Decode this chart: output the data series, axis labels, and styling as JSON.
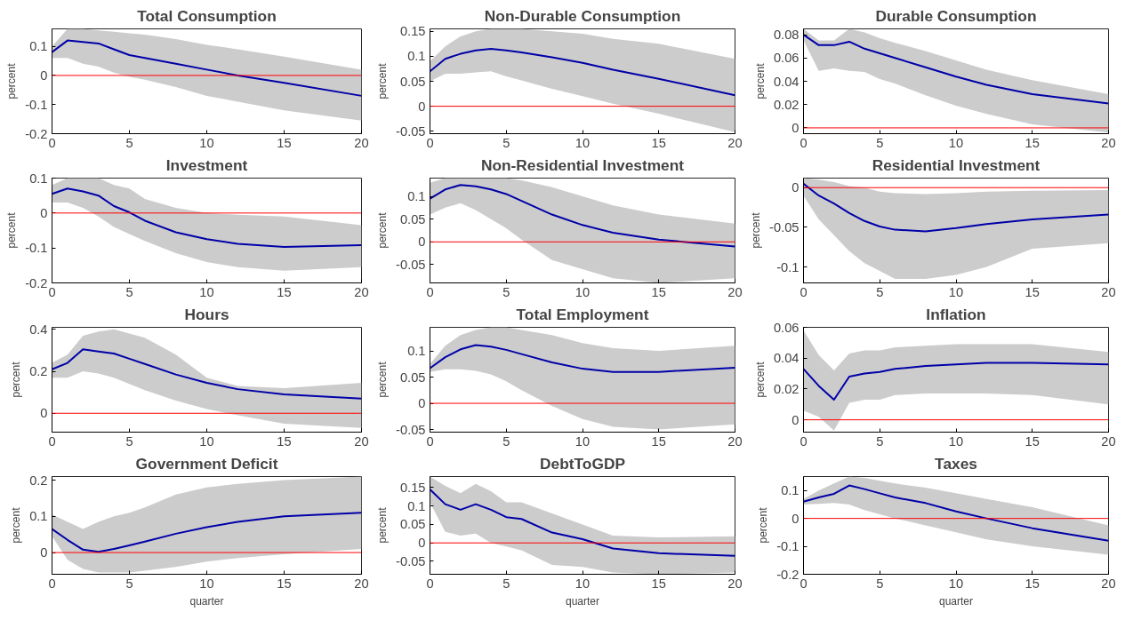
{
  "chart_data": [
    {
      "type": "line",
      "title": "Total Consumption",
      "ylabel": "percent",
      "x": [
        0,
        1,
        2,
        3,
        4,
        5,
        6,
        8,
        10,
        12,
        15,
        20
      ],
      "xlim": [
        0,
        20
      ],
      "xticks": [
        0,
        5,
        10,
        15,
        20
      ],
      "ylim": [
        -0.2,
        0.16
      ],
      "yticks": [
        -0.2,
        -0.1,
        0,
        0.1
      ],
      "grid": false,
      "ref_lines": [
        {
          "axis": "y",
          "value": 0,
          "color": "#ff0000"
        }
      ],
      "series": [
        {
          "color": "#0000a8",
          "values": [
            0.08,
            0.12,
            0.115,
            0.11,
            0.09,
            0.07,
            0.06,
            0.04,
            0.02,
            0,
            -0.025,
            -0.07
          ],
          "lower": [
            0.06,
            0.06,
            0.04,
            0.03,
            0.01,
            -0.005,
            -0.015,
            -0.04,
            -0.07,
            -0.09,
            -0.12,
            -0.155
          ],
          "upper": [
            0.1,
            0.16,
            0.16,
            0.155,
            0.15,
            0.145,
            0.14,
            0.125,
            0.105,
            0.09,
            0.065,
            0.02
          ]
        }
      ]
    },
    {
      "type": "line",
      "title": "Non-Durable Consumption",
      "ylabel": "percent",
      "x": [
        0,
        1,
        2,
        3,
        4,
        5,
        6,
        8,
        10,
        12,
        15,
        20
      ],
      "xlim": [
        0,
        20
      ],
      "xticks": [
        0,
        5,
        10,
        15,
        20
      ],
      "ylim": [
        -0.055,
        0.155
      ],
      "yticks": [
        -0.05,
        0,
        0.05,
        0.1,
        0.15
      ],
      "grid": false,
      "ref_lines": [
        {
          "axis": "y",
          "value": 0,
          "color": "#ff0000"
        }
      ],
      "series": [
        {
          "color": "#0000a8",
          "values": [
            0.07,
            0.095,
            0.105,
            0.112,
            0.115,
            0.112,
            0.108,
            0.098,
            0.087,
            0.073,
            0.055,
            0.022
          ],
          "lower": [
            0.05,
            0.065,
            0.065,
            0.068,
            0.07,
            0.06,
            0.052,
            0.035,
            0.02,
            0.005,
            -0.015,
            -0.052
          ],
          "upper": [
            0.09,
            0.12,
            0.14,
            0.15,
            0.155,
            0.155,
            0.155,
            0.15,
            0.145,
            0.135,
            0.125,
            0.095
          ]
        }
      ]
    },
    {
      "type": "line",
      "title": "Durable Consumption",
      "ylabel": "percent",
      "x": [
        0,
        1,
        2,
        3,
        4,
        5,
        6,
        8,
        10,
        12,
        15,
        20
      ],
      "xlim": [
        0,
        20
      ],
      "xticks": [
        0,
        5,
        10,
        15,
        20
      ],
      "ylim": [
        -0.005,
        0.085
      ],
      "yticks": [
        0,
        0.02,
        0.04,
        0.06,
        0.08
      ],
      "grid": false,
      "ref_lines": [
        {
          "axis": "y",
          "value": 0,
          "color": "#ff0000"
        }
      ],
      "series": [
        {
          "color": "#0000a8",
          "values": [
            0.08,
            0.071,
            0.071,
            0.074,
            0.068,
            0.064,
            0.06,
            0.052,
            0.044,
            0.037,
            0.029,
            0.021
          ],
          "lower": [
            0.075,
            0.049,
            0.051,
            0.049,
            0.048,
            0.042,
            0.038,
            0.028,
            0.019,
            0.012,
            0.003,
            -0.004
          ],
          "upper": [
            0.085,
            0.075,
            0.075,
            0.085,
            0.082,
            0.077,
            0.073,
            0.066,
            0.058,
            0.05,
            0.041,
            0.029
          ]
        }
      ]
    },
    {
      "type": "line",
      "title": "Investment",
      "ylabel": "percent",
      "x": [
        0,
        1,
        2,
        3,
        4,
        5,
        6,
        8,
        10,
        12,
        15,
        20
      ],
      "xlim": [
        0,
        20
      ],
      "xticks": [
        0,
        5,
        10,
        15,
        20
      ],
      "ylim": [
        -0.2,
        0.1
      ],
      "yticks": [
        -0.2,
        -0.1,
        0,
        0.1
      ],
      "grid": false,
      "ref_lines": [
        {
          "axis": "y",
          "value": 0,
          "color": "#ff0000"
        }
      ],
      "series": [
        {
          "color": "#0000a8",
          "values": [
            0.055,
            0.07,
            0.062,
            0.05,
            0.02,
            0.002,
            -0.022,
            -0.055,
            -0.075,
            -0.088,
            -0.097,
            -0.092
          ],
          "lower": [
            0.03,
            0.03,
            0.015,
            -0.01,
            -0.04,
            -0.06,
            -0.08,
            -0.115,
            -0.14,
            -0.155,
            -0.165,
            -0.155
          ],
          "upper": [
            0.08,
            0.1,
            0.1,
            0.1,
            0.08,
            0.07,
            0.04,
            0.015,
            0,
            -0.005,
            -0.01,
            -0.035
          ]
        }
      ]
    },
    {
      "type": "line",
      "title": "Non-Residential Investment",
      "ylabel": "percent",
      "x": [
        0,
        1,
        2,
        3,
        4,
        5,
        6,
        8,
        10,
        12,
        15,
        20
      ],
      "xlim": [
        0,
        20
      ],
      "xticks": [
        0,
        5,
        10,
        15,
        20
      ],
      "ylim": [
        -0.09,
        0.14
      ],
      "yticks": [
        -0.05,
        0,
        0.05,
        0.1
      ],
      "grid": false,
      "ref_lines": [
        {
          "axis": "y",
          "value": 0,
          "color": "#ff0000"
        }
      ],
      "series": [
        {
          "color": "#0000a8",
          "values": [
            0.095,
            0.115,
            0.125,
            0.122,
            0.115,
            0.105,
            0.09,
            0.06,
            0.037,
            0.02,
            0.005,
            -0.01
          ],
          "lower": [
            0.06,
            0.075,
            0.085,
            0.07,
            0.05,
            0.03,
            0.005,
            -0.04,
            -0.06,
            -0.08,
            -0.09,
            -0.08
          ],
          "upper": [
            0.13,
            0.14,
            0.14,
            0.14,
            0.14,
            0.14,
            0.135,
            0.12,
            0.1,
            0.08,
            0.06,
            0.04
          ]
        }
      ]
    },
    {
      "type": "line",
      "title": "Residential Investment",
      "ylabel": "percent",
      "x": [
        0,
        1,
        2,
        3,
        4,
        5,
        6,
        8,
        10,
        12,
        15,
        20
      ],
      "xlim": [
        0,
        20
      ],
      "xticks": [
        0,
        5,
        10,
        15,
        20
      ],
      "ylim": [
        -0.12,
        0.012
      ],
      "yticks": [
        -0.1,
        -0.05,
        0
      ],
      "grid": false,
      "ref_lines": [
        {
          "axis": "y",
          "value": 0,
          "color": "#ff0000"
        }
      ],
      "series": [
        {
          "color": "#0000a8",
          "values": [
            0.005,
            -0.01,
            -0.02,
            -0.032,
            -0.042,
            -0.049,
            -0.053,
            -0.055,
            -0.051,
            -0.046,
            -0.04,
            -0.034
          ],
          "lower": [
            -0.01,
            -0.04,
            -0.06,
            -0.08,
            -0.095,
            -0.105,
            -0.115,
            -0.115,
            -0.11,
            -0.1,
            -0.077,
            -0.07
          ],
          "upper": [
            0.012,
            0.01,
            0.007,
            0.002,
            0,
            -0.005,
            -0.007,
            -0.008,
            -0.007,
            -0.005,
            -0.004,
            -0.003
          ]
        }
      ]
    },
    {
      "type": "line",
      "title": "Hours",
      "ylabel": "percent",
      "x": [
        0,
        1,
        2,
        3,
        4,
        5,
        6,
        8,
        10,
        12,
        15,
        20
      ],
      "xlim": [
        0,
        20
      ],
      "xticks": [
        0,
        5,
        10,
        15,
        20
      ],
      "ylim": [
        -0.09,
        0.41
      ],
      "yticks": [
        0,
        0.2,
        0.4
      ],
      "grid": false,
      "ref_lines": [
        {
          "axis": "y",
          "value": 0,
          "color": "#ff0000"
        }
      ],
      "series": [
        {
          "color": "#0000a8",
          "values": [
            0.21,
            0.24,
            0.305,
            0.295,
            0.285,
            0.26,
            0.235,
            0.185,
            0.145,
            0.115,
            0.09,
            0.07
          ],
          "lower": [
            0.17,
            0.17,
            0.2,
            0.19,
            0.17,
            0.14,
            0.11,
            0.06,
            0.02,
            -0.01,
            -0.05,
            -0.07
          ],
          "upper": [
            0.24,
            0.28,
            0.37,
            0.39,
            0.4,
            0.38,
            0.36,
            0.28,
            0.17,
            0.13,
            0.12,
            0.145
          ]
        }
      ]
    },
    {
      "type": "line",
      "title": "Total Employment",
      "ylabel": "percent",
      "x": [
        0,
        1,
        2,
        3,
        4,
        5,
        6,
        8,
        10,
        12,
        15,
        20
      ],
      "xlim": [
        0,
        20
      ],
      "xticks": [
        0,
        5,
        10,
        15,
        20
      ],
      "ylim": [
        -0.055,
        0.145
      ],
      "yticks": [
        -0.05,
        0,
        0.05,
        0.1
      ],
      "grid": false,
      "ref_lines": [
        {
          "axis": "y",
          "value": 0,
          "color": "#ff0000"
        }
      ],
      "series": [
        {
          "color": "#0000a8",
          "values": [
            0.067,
            0.088,
            0.103,
            0.111,
            0.108,
            0.102,
            0.094,
            0.078,
            0.066,
            0.06,
            0.06,
            0.068
          ],
          "lower": [
            0.06,
            0.065,
            0.065,
            0.062,
            0.055,
            0.042,
            0.025,
            -0.005,
            -0.03,
            -0.045,
            -0.05,
            -0.04
          ],
          "upper": [
            0.075,
            0.11,
            0.13,
            0.14,
            0.145,
            0.145,
            0.14,
            0.13,
            0.115,
            0.105,
            0.1,
            0.11
          ]
        }
      ]
    },
    {
      "type": "line",
      "title": "Inflation",
      "ylabel": "percent",
      "x": [
        0,
        1,
        2,
        3,
        4,
        5,
        6,
        8,
        10,
        12,
        15,
        20
      ],
      "xlim": [
        0,
        20
      ],
      "xticks": [
        0,
        5,
        10,
        15,
        20
      ],
      "ylim": [
        -0.008,
        0.06
      ],
      "yticks": [
        0,
        0.02,
        0.04,
        0.06
      ],
      "grid": false,
      "ref_lines": [
        {
          "axis": "y",
          "value": 0,
          "color": "#ff0000"
        }
      ],
      "series": [
        {
          "color": "#0000a8",
          "values": [
            0.033,
            0.022,
            0.013,
            0.028,
            0.03,
            0.031,
            0.033,
            0.035,
            0.036,
            0.037,
            0.037,
            0.036
          ],
          "lower": [
            0.006,
            0.002,
            -0.007,
            0.011,
            0.013,
            0.013,
            0.016,
            0.017,
            0.017,
            0.017,
            0.016,
            0.01
          ],
          "upper": [
            0.058,
            0.042,
            0.032,
            0.043,
            0.045,
            0.045,
            0.047,
            0.048,
            0.049,
            0.049,
            0.049,
            0.044
          ]
        }
      ]
    },
    {
      "type": "line",
      "title": "Government Deficit",
      "ylabel": "percent",
      "xlabel": "quarter",
      "x": [
        0,
        1,
        2,
        3,
        4,
        5,
        6,
        8,
        10,
        12,
        15,
        20
      ],
      "xlim": [
        0,
        20
      ],
      "xticks": [
        0,
        5,
        10,
        15,
        20
      ],
      "ylim": [
        -0.06,
        0.21
      ],
      "yticks": [
        0,
        0.1,
        0.2
      ],
      "grid": false,
      "ref_lines": [
        {
          "axis": "y",
          "value": 0,
          "color": "#ff0000"
        }
      ],
      "series": [
        {
          "color": "#0000a8",
          "values": [
            0.065,
            0.035,
            0.008,
            0.002,
            0.01,
            0.02,
            0.03,
            0.052,
            0.07,
            0.085,
            0.1,
            0.11
          ],
          "lower": [
            0.045,
            -0.02,
            -0.045,
            -0.055,
            -0.055,
            -0.055,
            -0.05,
            -0.04,
            -0.025,
            -0.015,
            -0.005,
            0.01
          ],
          "upper": [
            0.105,
            0.085,
            0.065,
            0.085,
            0.1,
            0.11,
            0.125,
            0.16,
            0.18,
            0.19,
            0.2,
            0.21
          ]
        }
      ]
    },
    {
      "type": "line",
      "title": "DebtToGDP",
      "ylabel": "percent",
      "xlabel": "quarter",
      "x": [
        0,
        1,
        2,
        3,
        4,
        5,
        6,
        8,
        10,
        12,
        15,
        20
      ],
      "xlim": [
        0,
        20
      ],
      "xticks": [
        0,
        5,
        10,
        15,
        20
      ],
      "ylim": [
        -0.085,
        0.18
      ],
      "yticks": [
        -0.05,
        0,
        0.05,
        0.1,
        0.15
      ],
      "grid": false,
      "ref_lines": [
        {
          "axis": "y",
          "value": 0,
          "color": "#ff0000"
        }
      ],
      "series": [
        {
          "color": "#0000a8",
          "values": [
            0.145,
            0.105,
            0.09,
            0.105,
            0.09,
            0.07,
            0.065,
            0.028,
            0.01,
            -0.015,
            -0.028,
            -0.035
          ],
          "lower": [
            0.11,
            0.03,
            0.02,
            0.025,
            0,
            -0.01,
            -0.02,
            -0.06,
            -0.065,
            -0.08,
            -0.085,
            -0.08
          ],
          "upper": [
            0.18,
            0.155,
            0.135,
            0.16,
            0.14,
            0.11,
            0.11,
            0.08,
            0.05,
            0.02,
            0.015,
            0.018
          ]
        }
      ]
    },
    {
      "type": "line",
      "title": "Taxes",
      "ylabel": "percent",
      "xlabel": "quarter",
      "x": [
        0,
        1,
        2,
        3,
        4,
        5,
        6,
        8,
        10,
        12,
        15,
        20
      ],
      "xlim": [
        0,
        20
      ],
      "xticks": [
        0,
        5,
        10,
        15,
        20
      ],
      "ylim": [
        -0.2,
        0.15
      ],
      "yticks": [
        -0.2,
        -0.1,
        0,
        0.1
      ],
      "grid": false,
      "ref_lines": [
        {
          "axis": "y",
          "value": 0,
          "color": "#ff0000"
        }
      ],
      "series": [
        {
          "color": "#0000a8",
          "values": [
            0.06,
            0.075,
            0.088,
            0.118,
            0.105,
            0.09,
            0.075,
            0.055,
            0.025,
            0,
            -0.035,
            -0.08
          ],
          "lower": [
            0.05,
            0.052,
            0.055,
            0.05,
            0.03,
            0.015,
            0,
            -0.025,
            -0.05,
            -0.075,
            -0.1,
            -0.13
          ],
          "upper": [
            0.07,
            0.1,
            0.125,
            0.15,
            0.145,
            0.135,
            0.125,
            0.11,
            0.09,
            0.07,
            0.04,
            -0.025
          ]
        }
      ]
    }
  ]
}
